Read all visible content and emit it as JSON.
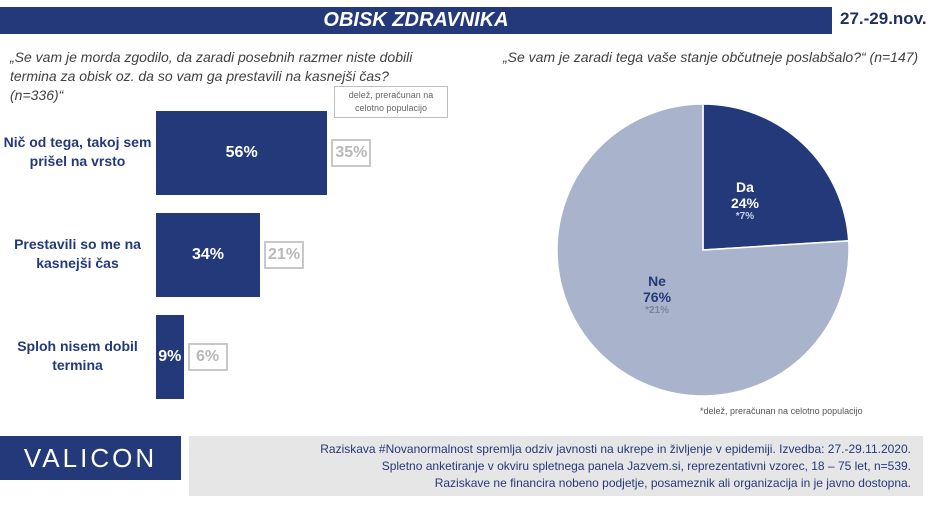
{
  "header": {
    "title": "OBISK ZDRAVNIKA",
    "date": "27.-29.nov."
  },
  "chart_data": [
    {
      "type": "bar",
      "title": "„Se vam je morda zgodilo, da zaradi posebnih razmer niste dobili termina za obisk oz. da so vam ga prestavili na kasnejši čas? (n=336)“",
      "note": "delež, preračunan na celotno populacijo",
      "categories": [
        "Nič od tega, takoj sem prišel na vrsto",
        "Prestavili so me na kasnejši čas",
        "Sploh nisem dobil termina"
      ],
      "values": [
        56,
        34,
        9
      ],
      "value_labels": [
        "56%",
        "34%",
        "9%"
      ],
      "population_values": [
        35,
        21,
        6
      ],
      "population_labels": [
        "35%",
        "21%",
        "6%"
      ],
      "xlim": [
        0,
        100
      ]
    },
    {
      "type": "pie",
      "title": "„Se vam je zaradi tega vaše stanje občutneje poslabšalo?“ (n=147)",
      "slices": [
        {
          "label": "Da",
          "value": 24,
          "pct_label": "24%",
          "population_label": "*7%",
          "color": "#24397a"
        },
        {
          "label": "Ne",
          "value": 76,
          "pct_label": "76%",
          "population_label": "*21%",
          "color": "#a9b4cc"
        }
      ],
      "footnote": "*delež, preračunan na celotno populacijo"
    }
  ],
  "footer": {
    "logo": "VALICON",
    "lines": [
      "Raziskava #Novanormalnost spremlja odziv javnosti na ukrepe in življenje v epidemiji. Izvedba: 27.-29.11.2020.",
      "Spletno anketiranje v okviru spletnega panela Jazvem.si, reprezentativni vzorec, 18 – 75 let, n=539.",
      "Raziskave ne financira nobeno podjetje, posameznik ali organizacija in je javno dostopna."
    ]
  },
  "colors": {
    "brand": "#24397a",
    "pie_light": "#a9b4cc",
    "population_box": "#c8c8c8"
  }
}
